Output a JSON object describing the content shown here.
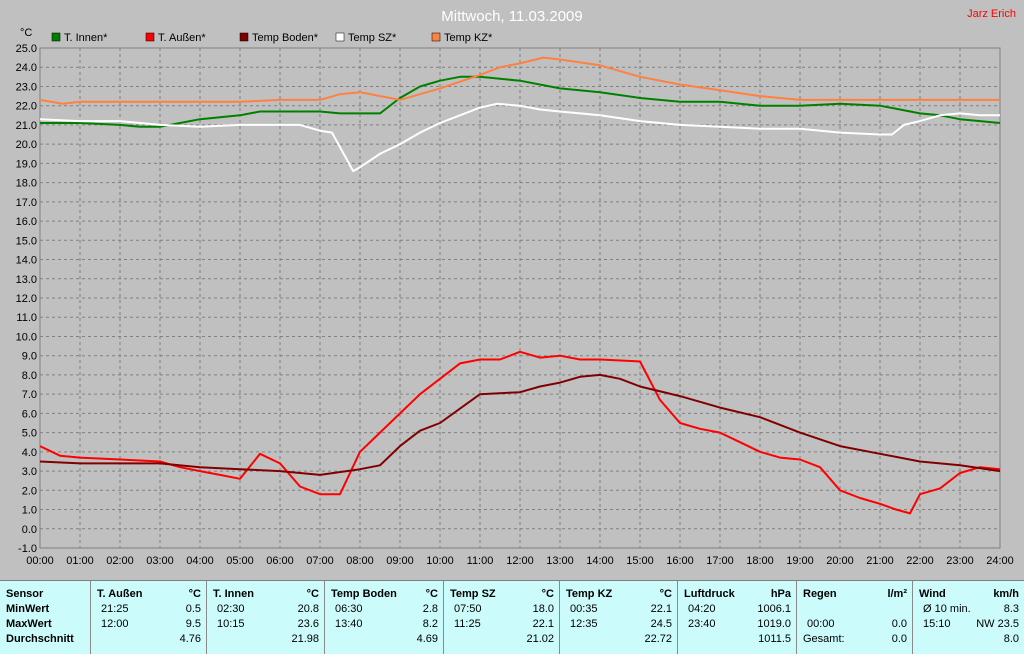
{
  "chart_data": {
    "type": "line",
    "title": "Mittwoch, 11.03.2009",
    "corner_label": "Jarz Erich",
    "ylabel": "°C",
    "ylim": [
      -1.0,
      25.0
    ],
    "yticks": [
      "-1.0",
      "0.0",
      "1.0",
      "2.0",
      "3.0",
      "4.0",
      "5.0",
      "6.0",
      "7.0",
      "8.0",
      "9.0",
      "10.0",
      "11.0",
      "12.0",
      "13.0",
      "14.0",
      "15.0",
      "16.0",
      "17.0",
      "18.0",
      "19.0",
      "20.0",
      "21.0",
      "22.0",
      "23.0",
      "24.0",
      "25.0"
    ],
    "xlim": [
      0,
      24
    ],
    "xticks": [
      "00:00",
      "01:00",
      "02:00",
      "03:00",
      "04:00",
      "05:00",
      "06:00",
      "07:00",
      "08:00",
      "09:00",
      "10:00",
      "11:00",
      "12:00",
      "13:00",
      "14:00",
      "15:00",
      "16:00",
      "17:00",
      "18:00",
      "19:00",
      "20:00",
      "21:00",
      "22:00",
      "23:00",
      "24:00"
    ],
    "grid": true,
    "legend_position": "top-left",
    "colors": {
      "background": "#c0c0c0",
      "grid": "#808080",
      "title": "#ffffff",
      "corner_label": "#ff0000"
    },
    "series": [
      {
        "name": "T. Innen*",
        "color": "#008000",
        "x": [
          0,
          1,
          2,
          2.5,
          3,
          3.5,
          4,
          4.5,
          5,
          5.5,
          6,
          7,
          7.5,
          8,
          8.5,
          9,
          9.5,
          10,
          10.5,
          11,
          11.5,
          12,
          13,
          14,
          15,
          16,
          17,
          18,
          19,
          20,
          21,
          21.5,
          22,
          22.5,
          23,
          24
        ],
        "y": [
          21.1,
          21.1,
          21.0,
          20.9,
          20.9,
          21.1,
          21.3,
          21.4,
          21.5,
          21.7,
          21.7,
          21.7,
          21.6,
          21.6,
          21.6,
          22.4,
          23.0,
          23.3,
          23.5,
          23.5,
          23.4,
          23.3,
          22.9,
          22.7,
          22.4,
          22.2,
          22.2,
          22.0,
          22.0,
          22.1,
          22.0,
          21.8,
          21.6,
          21.5,
          21.3,
          21.1
        ]
      },
      {
        "name": "T. Außen*",
        "color": "#ff0000",
        "x": [
          0,
          0.5,
          1,
          2,
          3,
          3.5,
          4,
          4.5,
          5,
          5.5,
          6,
          6.5,
          7,
          7.5,
          8,
          8.5,
          9,
          9.5,
          10,
          10.5,
          11,
          11.5,
          12,
          12.5,
          13,
          13.5,
          14,
          15,
          15.5,
          16,
          16.5,
          17,
          17.5,
          18,
          18.5,
          19,
          19.5,
          20,
          20.5,
          21,
          21.4,
          21.75,
          22,
          22.5,
          23,
          23.5,
          24
        ],
        "y": [
          4.3,
          3.8,
          3.7,
          3.6,
          3.5,
          3.2,
          3.0,
          2.8,
          2.6,
          3.9,
          3.4,
          2.2,
          1.8,
          1.8,
          4.0,
          5.0,
          6.0,
          7.0,
          7.8,
          8.6,
          8.8,
          8.8,
          9.2,
          8.9,
          9.0,
          8.8,
          8.8,
          8.7,
          6.7,
          5.5,
          5.2,
          5.0,
          4.5,
          4.0,
          3.7,
          3.6,
          3.2,
          2.0,
          1.6,
          1.3,
          1.0,
          0.8,
          1.8,
          2.1,
          2.9,
          3.2,
          3.1
        ]
      },
      {
        "name": "Temp Boden*",
        "color": "#800000",
        "x": [
          0,
          1,
          2,
          3,
          4,
          5,
          6,
          7,
          8,
          8.5,
          9,
          9.5,
          10,
          11,
          12,
          12.5,
          13,
          13.5,
          14,
          14.5,
          15,
          16,
          17,
          18,
          19,
          20,
          21,
          22,
          23,
          24
        ],
        "y": [
          3.5,
          3.4,
          3.4,
          3.4,
          3.2,
          3.1,
          3.0,
          2.8,
          3.1,
          3.3,
          4.3,
          5.1,
          5.5,
          7.0,
          7.1,
          7.4,
          7.6,
          7.9,
          8.0,
          7.8,
          7.4,
          6.9,
          6.3,
          5.8,
          5.0,
          4.3,
          3.9,
          3.5,
          3.3,
          3.0
        ]
      },
      {
        "name": "Temp SZ*",
        "color": "#ffffff",
        "x": [
          0,
          1,
          2,
          3,
          4,
          5,
          6,
          6.5,
          7,
          7.3,
          7.83,
          8,
          8.5,
          9,
          9.5,
          10,
          10.5,
          11,
          11.42,
          12,
          12.5,
          13,
          14,
          15,
          16,
          17,
          18,
          19,
          20,
          21,
          21.3,
          21.6,
          22,
          22.5,
          23,
          23.5,
          24
        ],
        "y": [
          21.3,
          21.2,
          21.2,
          21.0,
          20.9,
          21.0,
          21.0,
          21.0,
          20.7,
          20.6,
          18.6,
          18.8,
          19.5,
          20.0,
          20.6,
          21.1,
          21.5,
          21.9,
          22.1,
          22.0,
          21.8,
          21.7,
          21.5,
          21.2,
          21.0,
          20.9,
          20.8,
          20.8,
          20.6,
          20.5,
          20.5,
          21.0,
          21.2,
          21.5,
          21.6,
          21.5,
          21.5
        ]
      },
      {
        "name": "Temp KZ*",
        "color": "#ff8040",
        "x": [
          0,
          0.58,
          1,
          2,
          3,
          4,
          5,
          6,
          7,
          7.5,
          8,
          8.5,
          9,
          10,
          11,
          11.5,
          12,
          12.58,
          13,
          14,
          15,
          16,
          17,
          18,
          19,
          20,
          21,
          22,
          23,
          24
        ],
        "y": [
          22.3,
          22.1,
          22.2,
          22.2,
          22.2,
          22.2,
          22.2,
          22.3,
          22.3,
          22.6,
          22.7,
          22.5,
          22.3,
          22.9,
          23.6,
          24.0,
          24.2,
          24.5,
          24.4,
          24.1,
          23.5,
          23.1,
          22.8,
          22.5,
          22.3,
          22.3,
          22.3,
          22.3,
          22.3,
          22.3
        ]
      }
    ]
  },
  "stats": {
    "sensor": {
      "title": "Sensor",
      "rows": [
        "MinWert",
        "MaxWert",
        "Durchschnitt"
      ]
    },
    "columns": [
      {
        "name": "T. Außen",
        "unit": "°C",
        "min_time": "21:25",
        "min": "0.5",
        "max_time": "12:00",
        "max": "9.5",
        "avg": "4.76"
      },
      {
        "name": "T. Innen",
        "unit": "°C",
        "min_time": "02:30",
        "min": "20.8",
        "max_time": "10:15",
        "max": "23.6",
        "avg": "21.98"
      },
      {
        "name": "Temp Boden",
        "unit": "°C",
        "min_time": "06:30",
        "min": "2.8",
        "max_time": "13:40",
        "max": "8.2",
        "avg": "4.69"
      },
      {
        "name": "Temp SZ",
        "unit": "°C",
        "min_time": "07:50",
        "min": "18.0",
        "max_time": "11:25",
        "max": "22.1",
        "avg": "21.02"
      },
      {
        "name": "Temp KZ",
        "unit": "°C",
        "min_time": "00:35",
        "min": "22.1",
        "max_time": "12:35",
        "max": "24.5",
        "avg": "22.72"
      },
      {
        "name": "Luftdruck",
        "unit": "hPa",
        "min_time": "04:20",
        "min": "1006.1",
        "max_time": "23:40",
        "max": "1019.0",
        "avg": "1011.5"
      },
      {
        "name": "Regen",
        "unit": "l/m²",
        "min_time": "",
        "min": "",
        "max_time": "00:00",
        "max": "0.0",
        "avg_label": "Gesamt:",
        "avg": "0.0"
      },
      {
        "name": "Wind",
        "unit": "km/h",
        "min_time": "Ø 10 min.",
        "min": "8.3",
        "max_time": "15:10",
        "max": "NW 23.5",
        "avg": "8.0"
      }
    ]
  }
}
